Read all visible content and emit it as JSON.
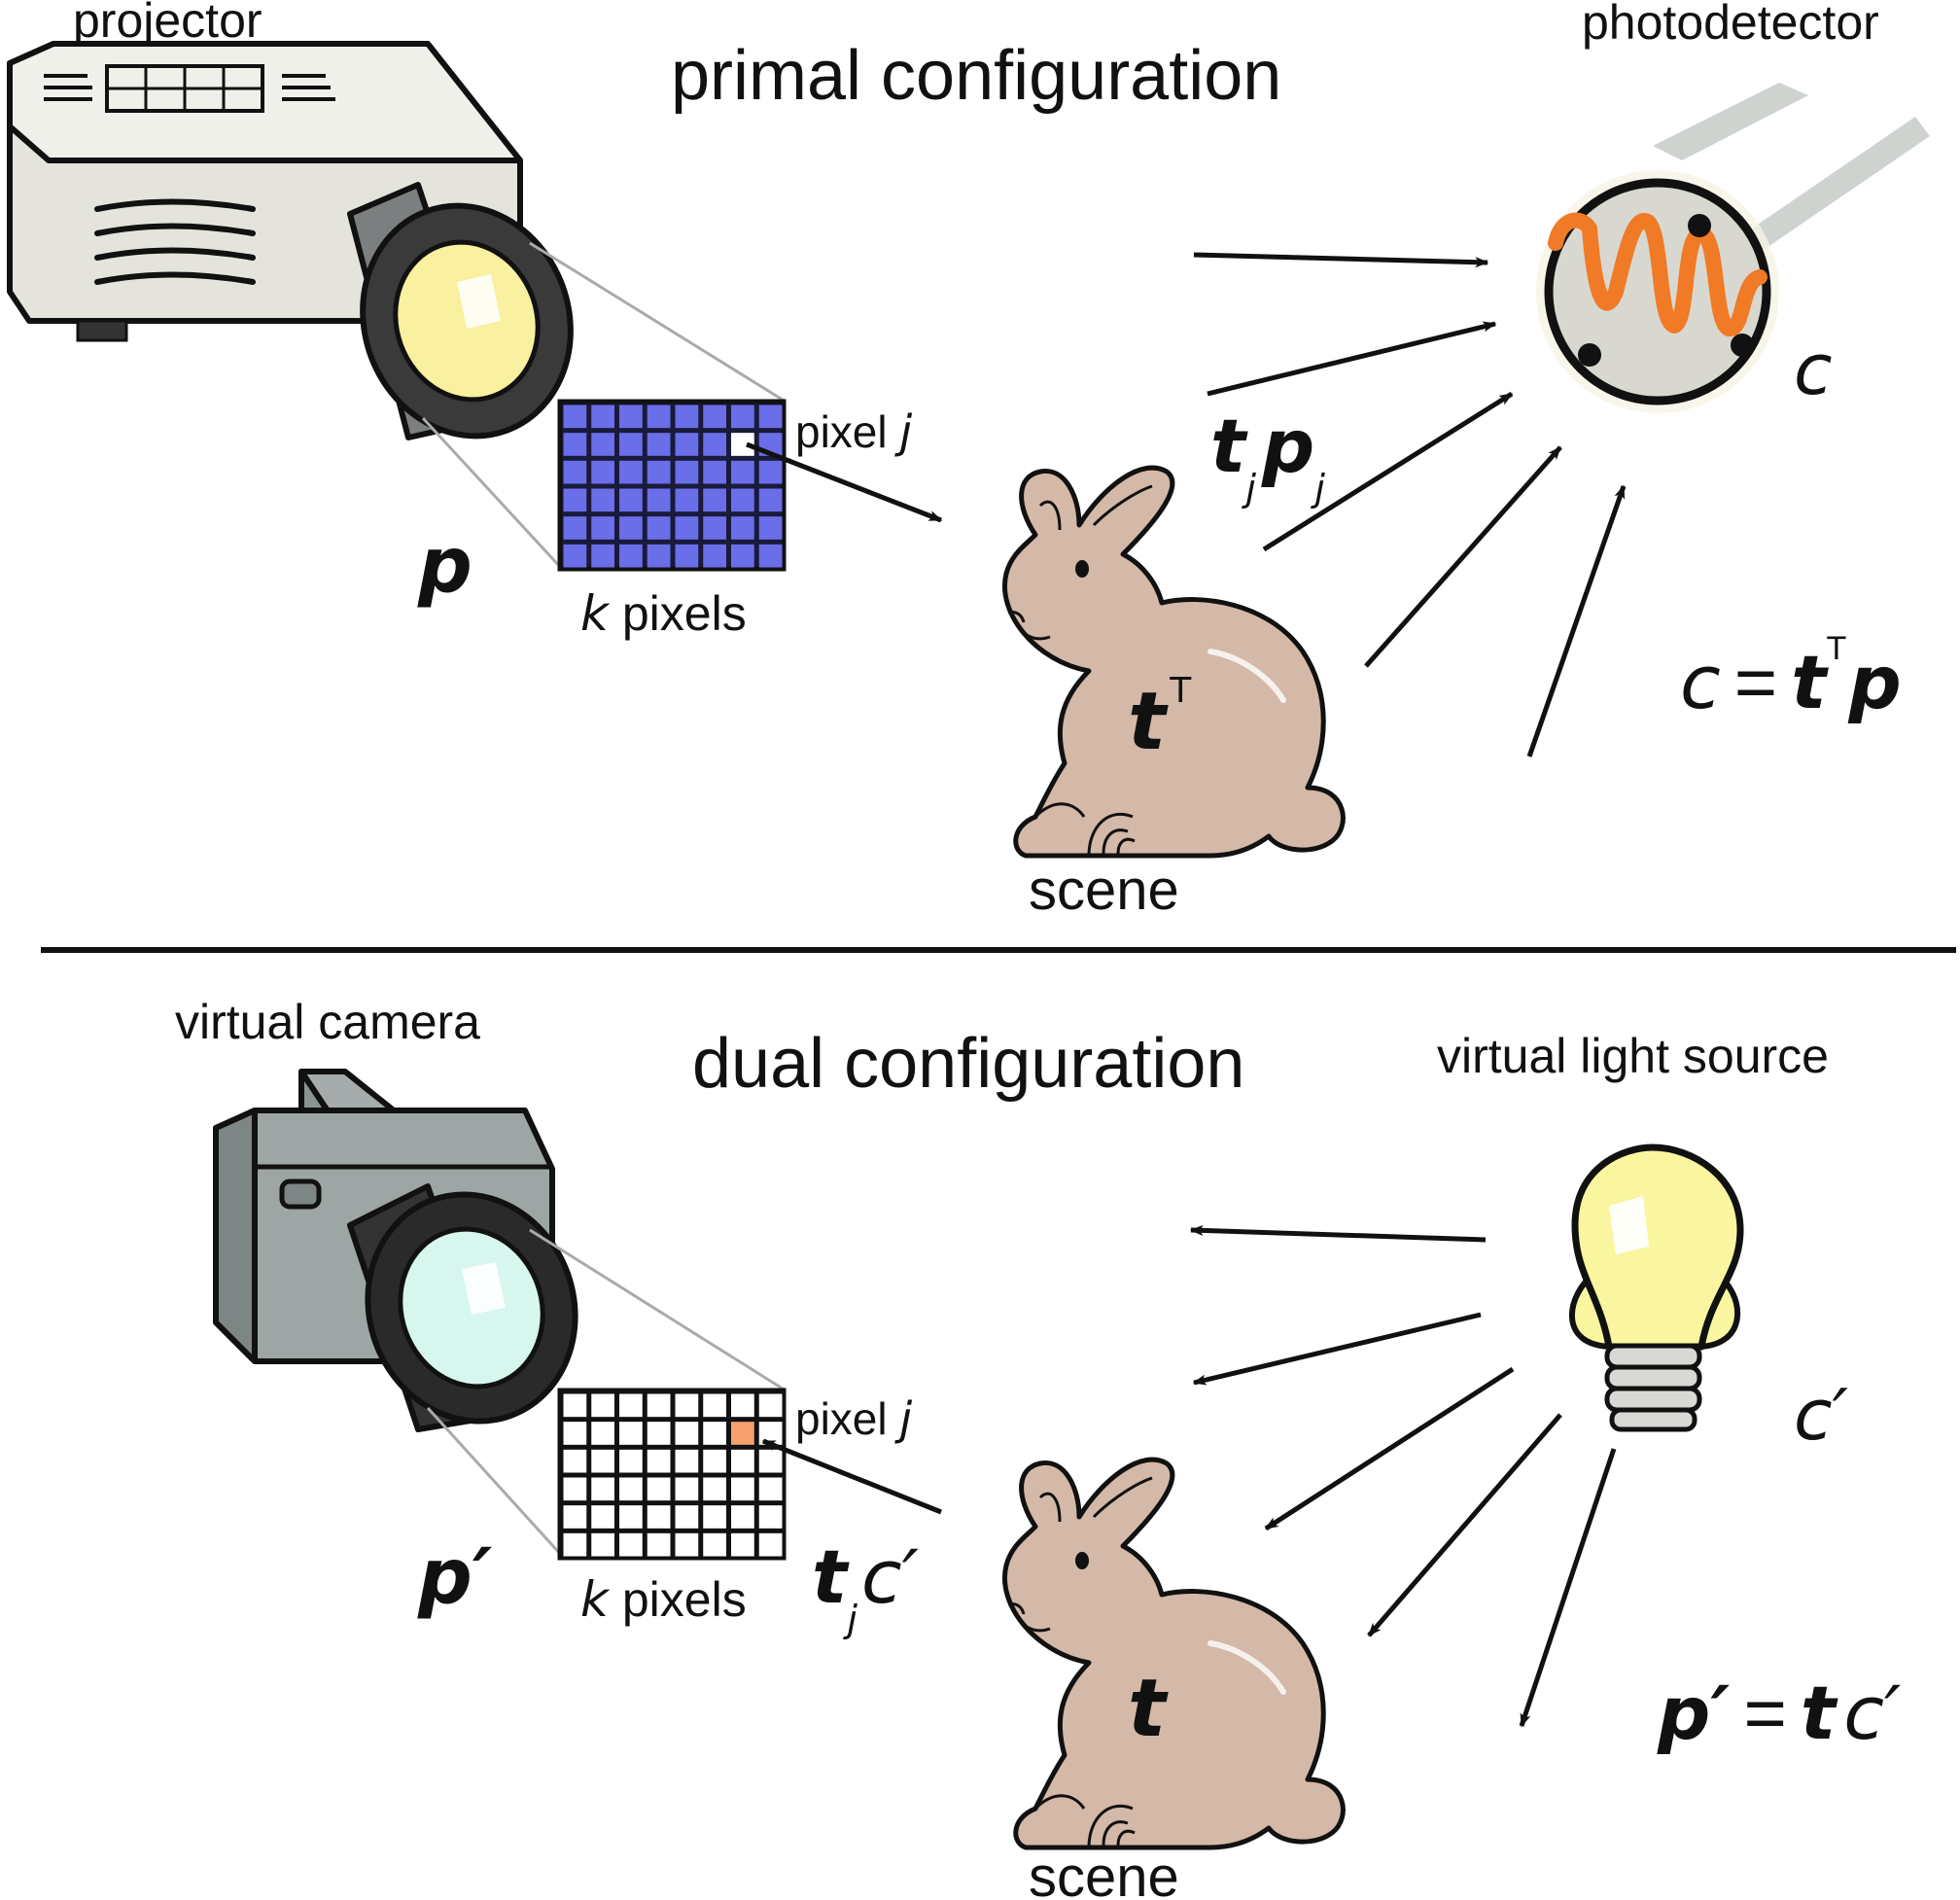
{
  "primal": {
    "title": "primal configuration",
    "projector_label": "projector",
    "photodetector_label": "photodetector",
    "scene_label": "scene",
    "pixel_label": "pixel",
    "pixel_index": "j",
    "k_symbol": "k",
    "pixels_word": "pixels",
    "p_symbol": "p",
    "c_symbol": "c",
    "t_symbol": "t",
    "transpose": "T",
    "tj_t": "t",
    "tj_sub": "j",
    "tj_p": "p",
    "tj_p_sub": "j",
    "eq_c": "c",
    "eq_equals": "=",
    "eq_t": "t",
    "eq_sup": "T",
    "eq_p": "p"
  },
  "dual": {
    "title": "dual configuration",
    "camera_label": "virtual camera",
    "light_label": "virtual light source",
    "scene_label": "scene",
    "pixel_label": "pixel",
    "pixel_index": "j",
    "k_symbol": "k",
    "pixels_word": "pixels",
    "p_prime": "p′",
    "c_prime": "c′",
    "t_symbol": "t",
    "tj_t": "t",
    "tj_sub": "j",
    "tj_c": "c′",
    "eq_p": "p′",
    "eq_equals": "=",
    "eq_t": "t",
    "eq_c": "c′"
  },
  "colors": {
    "projector_body": "#e4e4dc",
    "lens_yellow": "#f9f0a0",
    "pixel_blue": "#6a6ee8",
    "grid_dark": "#1a1a3a",
    "bunny": "#d4b8a8",
    "detector_fill": "#d8d8d0",
    "coil": "#f07a26",
    "bulb": "#faf6a0",
    "camera_body": "#9ea5a5",
    "camera_lens": "#d6f6ee",
    "dual_pixel_highlight": "#f6a070"
  },
  "icons": {
    "projector": "projector-icon",
    "photodetector": "photodetector-icon",
    "bunny": "bunny-icon",
    "camera": "camera-icon",
    "bulb": "light-bulb-icon"
  }
}
